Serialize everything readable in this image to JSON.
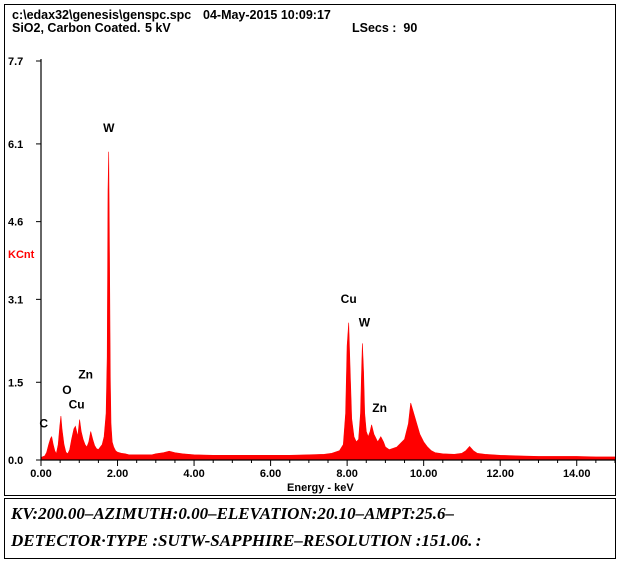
{
  "header": {
    "file_path": "c:\\edax32\\genesis\\genspc.spc",
    "timestamp": "04-May-2015 10:09:17",
    "sample": "SiO2, Carbon Coated.",
    "kv": "5 kV",
    "lsecs": "LSecs :  90"
  },
  "footer": {
    "line1": "KV:200.00–AZIMUTH:0.00–ELEVATION:20.10–AMPT:25.6–",
    "line2": "DETECTOR·TYPE :SUTW-SAPPHIRE–RESOLUTION :151.06. :"
  },
  "colors": {
    "spectrum": "#ff0000",
    "ylabel": "#ff0000",
    "axis": "#000000"
  },
  "chart_data": {
    "type": "area",
    "xlabel": "Energy - keV",
    "ylabel": "KCnt",
    "xlim": [
      0,
      15.0
    ],
    "ylim": [
      0,
      7.7
    ],
    "x_ticks": [
      0.0,
      2.0,
      4.0,
      6.0,
      8.0,
      10.0,
      12.0,
      14.0
    ],
    "x_tick_labels": [
      "0.00",
      "2.00",
      "4.00",
      "6.00",
      "8.00",
      "10.00",
      "12.00",
      "14.00"
    ],
    "y_ticks": [
      0.0,
      1.5,
      3.1,
      4.6,
      6.1,
      7.7
    ],
    "y_tick_labels": [
      "0.0",
      "1.5",
      "3.1",
      "4.6",
      "6.1",
      "7.7"
    ],
    "peaks": [
      {
        "label": "C",
        "x": 0.28,
        "y": 0.45,
        "label_y": 0.55
      },
      {
        "label": "O",
        "x": 0.52,
        "y": 0.85,
        "label_y": 1.2
      },
      {
        "label": "Cu",
        "x": 0.93,
        "y": 0.65,
        "label_y": 0.92
      },
      {
        "label": "Zn",
        "x": 1.01,
        "y": 0.78,
        "label_y": 1.5
      },
      {
        "label": "W",
        "x": 1.77,
        "y": 5.95,
        "label_y": 6.25
      },
      {
        "label": "Cu",
        "x": 8.04,
        "y": 2.65,
        "label_y": 2.95
      },
      {
        "label": "W",
        "x": 8.4,
        "y": 2.25,
        "label_y": 2.5
      },
      {
        "label": "Zn",
        "x": 8.64,
        "y": 0.68,
        "label_y": 0.85
      }
    ],
    "spectrum": {
      "x": [
        0.0,
        0.1,
        0.15,
        0.2,
        0.25,
        0.28,
        0.32,
        0.36,
        0.4,
        0.45,
        0.49,
        0.52,
        0.55,
        0.6,
        0.65,
        0.7,
        0.75,
        0.8,
        0.86,
        0.9,
        0.93,
        0.96,
        1.01,
        1.05,
        1.1,
        1.15,
        1.2,
        1.25,
        1.3,
        1.35,
        1.4,
        1.45,
        1.5,
        1.55,
        1.6,
        1.65,
        1.7,
        1.73,
        1.75,
        1.77,
        1.79,
        1.81,
        1.83,
        1.86,
        1.9,
        1.95,
        2.0,
        2.1,
        2.2,
        2.3,
        2.5,
        2.7,
        2.9,
        3.0,
        3.2,
        3.35,
        3.5,
        3.7,
        4.0,
        4.5,
        5.0,
        5.5,
        6.0,
        6.5,
        7.0,
        7.4,
        7.6,
        7.8,
        7.9,
        7.96,
        8.0,
        8.04,
        8.08,
        8.12,
        8.18,
        8.24,
        8.3,
        8.35,
        8.38,
        8.4,
        8.43,
        8.46,
        8.5,
        8.55,
        8.6,
        8.64,
        8.7,
        8.8,
        8.88,
        8.95,
        9.0,
        9.1,
        9.3,
        9.5,
        9.6,
        9.66,
        9.72,
        9.8,
        9.9,
        10.0,
        10.1,
        10.2,
        10.3,
        10.5,
        10.8,
        11.0,
        11.1,
        11.2,
        11.3,
        11.4,
        11.6,
        12.0,
        12.5,
        13.0,
        13.5,
        14.0,
        14.5,
        15.0
      ],
      "y": [
        0.05,
        0.08,
        0.15,
        0.3,
        0.42,
        0.45,
        0.3,
        0.18,
        0.12,
        0.3,
        0.65,
        0.85,
        0.6,
        0.3,
        0.15,
        0.12,
        0.2,
        0.4,
        0.6,
        0.65,
        0.55,
        0.45,
        0.78,
        0.55,
        0.4,
        0.3,
        0.25,
        0.35,
        0.55,
        0.4,
        0.28,
        0.22,
        0.2,
        0.25,
        0.3,
        0.45,
        0.9,
        2.0,
        5.2,
        5.95,
        4.0,
        1.6,
        0.7,
        0.35,
        0.25,
        0.18,
        0.15,
        0.13,
        0.12,
        0.1,
        0.1,
        0.1,
        0.1,
        0.12,
        0.14,
        0.17,
        0.14,
        0.12,
        0.1,
        0.09,
        0.09,
        0.09,
        0.09,
        0.09,
        0.1,
        0.11,
        0.13,
        0.18,
        0.3,
        0.9,
        2.2,
        2.65,
        1.7,
        0.8,
        0.45,
        0.35,
        0.4,
        0.9,
        1.8,
        2.25,
        1.7,
        0.9,
        0.55,
        0.45,
        0.55,
        0.68,
        0.5,
        0.35,
        0.45,
        0.35,
        0.25,
        0.2,
        0.25,
        0.4,
        0.7,
        1.1,
        0.95,
        0.75,
        0.5,
        0.35,
        0.25,
        0.18,
        0.14,
        0.12,
        0.11,
        0.13,
        0.18,
        0.26,
        0.18,
        0.13,
        0.11,
        0.09,
        0.08,
        0.07,
        0.07,
        0.07,
        0.06,
        0.06
      ]
    }
  }
}
